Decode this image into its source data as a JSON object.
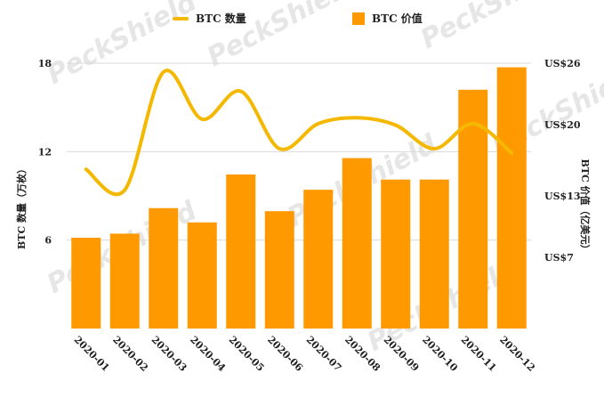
{
  "legend": {
    "line_label": "BTC 数量",
    "bar_label": "BTC 价值"
  },
  "colors": {
    "line": "#f5b800",
    "bar": "#ff9900",
    "grid": "#d9d9d9"
  },
  "watermark": "PeckShield",
  "chart_data": {
    "type": "bar",
    "categories": [
      "2020-01",
      "2020-02",
      "2020-03",
      "2020-04",
      "2020-05",
      "2020-06",
      "2020-07",
      "2020-08",
      "2020-09",
      "2020-10",
      "2020-11",
      "2020-12"
    ],
    "ylabel": "BTC 数量（万枚）",
    "y2label": "BTC 价值（亿美元）",
    "ylim": [
      0,
      18
    ],
    "yticks": [
      6,
      12,
      18
    ],
    "y2lim": [
      0,
      26
    ],
    "y2ticks": [
      7,
      13,
      20,
      26
    ],
    "y2ticklabels": [
      "US$7",
      "US$13",
      "US$20",
      "US$26"
    ],
    "series": [
      {
        "name": "BTC 价值",
        "type": "bar",
        "axis": "right",
        "values": [
          8.9,
          9.3,
          11.8,
          10.4,
          15.1,
          11.5,
          13.6,
          16.7,
          14.6,
          14.6,
          23.4,
          25.6
        ]
      },
      {
        "name": "BTC 数量",
        "type": "line",
        "axis": "left",
        "values": [
          10.8,
          9.4,
          17.4,
          14.2,
          16.1,
          12.2,
          13.9,
          14.3,
          13.8,
          12.2,
          13.9,
          11.9
        ]
      }
    ]
  }
}
